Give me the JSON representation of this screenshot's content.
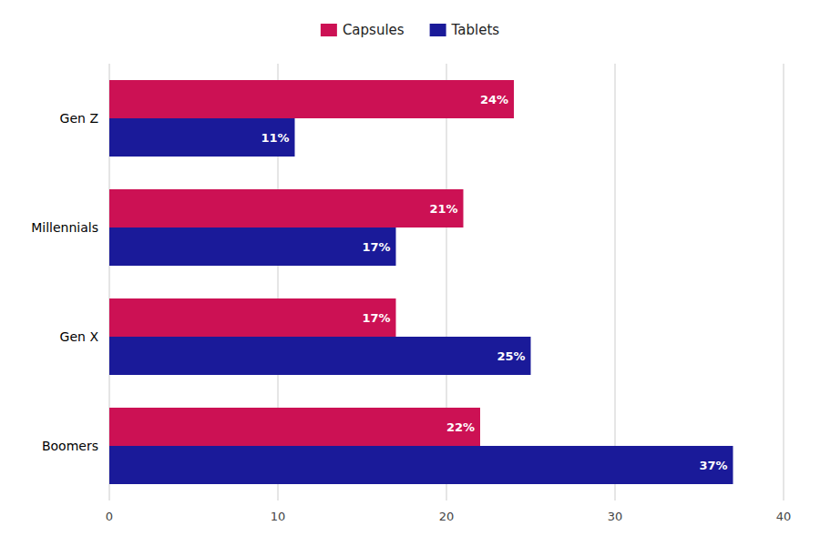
{
  "chart_data": {
    "type": "bar",
    "orientation": "horizontal",
    "categories": [
      "Gen Z",
      "Millennials",
      "Gen X",
      "Boomers"
    ],
    "series": [
      {
        "name": "Capsules",
        "color": "#CC1154",
        "values": [
          24,
          21,
          17,
          22
        ],
        "value_labels": [
          "24%",
          "21%",
          "17%",
          "22%"
        ]
      },
      {
        "name": "Tablets",
        "color": "#1A1A99",
        "values": [
          11,
          17,
          25,
          37
        ],
        "value_labels": [
          "11%",
          "17%",
          "25%",
          "37%"
        ]
      }
    ],
    "xlim": [
      0,
      40
    ],
    "xticks": [
      0,
      10,
      20,
      30,
      40
    ],
    "grid": true,
    "data_labels": true,
    "legend": "top"
  }
}
